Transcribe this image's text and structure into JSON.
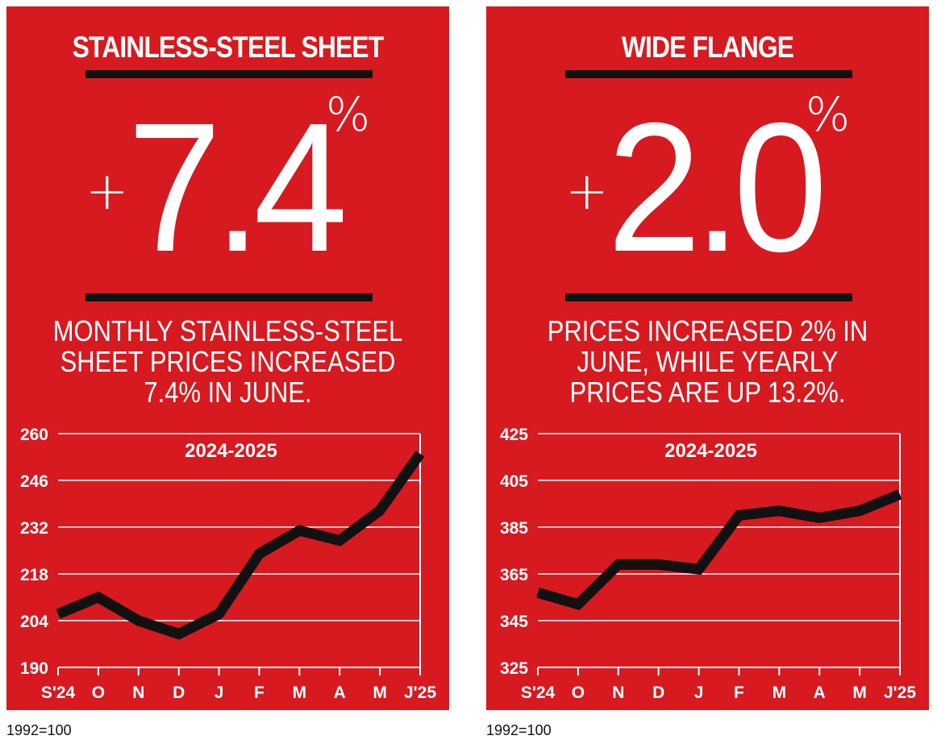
{
  "colors": {
    "panel": "#d71920",
    "text": "#ffffff",
    "line": "#111111",
    "grid": "#ffffff"
  },
  "panels": [
    {
      "title": "STAINLESS-STEEL SHEET",
      "sign": "+",
      "value": "7.4",
      "percent": "%",
      "description": "MONTHLY STAINLESS-STEEL SHEET PRICES INCREASED 7.4% IN JUNE.",
      "footnote": "1992=100"
    },
    {
      "title": "WIDE FLANGE",
      "sign": "+",
      "value": "2.0",
      "percent": "%",
      "description": "PRICES INCREASED 2% IN JUNE, WHILE YEARLY PRICES ARE UP 13.2%.",
      "footnote": "1992=100"
    }
  ],
  "chart_data": [
    {
      "type": "line",
      "title": "2024-2025",
      "categories": [
        "S'24",
        "O",
        "N",
        "D",
        "J",
        "F",
        "M",
        "A",
        "M",
        "J'25"
      ],
      "values": [
        206,
        211,
        204,
        200,
        206,
        224,
        231,
        228,
        237,
        254
      ],
      "ylim": [
        190,
        260
      ],
      "yticks": [
        190,
        204,
        218,
        232,
        246,
        260
      ],
      "grid": true
    },
    {
      "type": "line",
      "title": "2024-2025",
      "categories": [
        "S'24",
        "O",
        "N",
        "D",
        "J",
        "F",
        "M",
        "A",
        "M",
        "J'25"
      ],
      "values": [
        357,
        352,
        369,
        369,
        367,
        390,
        392,
        389,
        392,
        399
      ],
      "ylim": [
        325,
        425
      ],
      "yticks": [
        325,
        345,
        365,
        385,
        405,
        425
      ],
      "grid": true
    }
  ]
}
